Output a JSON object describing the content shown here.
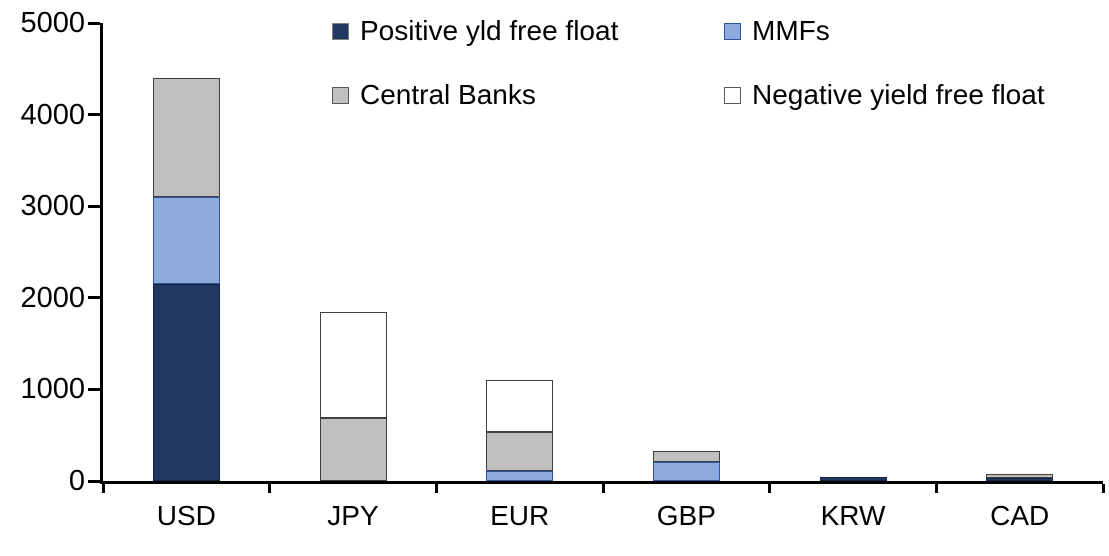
{
  "chart_data": {
    "type": "bar",
    "stacked": true,
    "title": "",
    "xlabel": "",
    "ylabel": "",
    "categories": [
      "USD",
      "JPY",
      "EUR",
      "GBP",
      "KRW",
      "CAD"
    ],
    "series": [
      {
        "name": "Positive yld free float",
        "color": "#203864",
        "border_color": "#16253f",
        "marker_border": "#808080",
        "values": [
          2150,
          0,
          0,
          0,
          45,
          35
        ]
      },
      {
        "name": "MMFs",
        "color": "#8FAADC",
        "border_color": "#2E5597",
        "marker_border": "#2E5597",
        "values": [
          950,
          0,
          110,
          210,
          0,
          0
        ]
      },
      {
        "name": "Central Banks",
        "color": "#BFBFBF",
        "border_color": "#404040",
        "marker_border": "#595959",
        "values": [
          1300,
          690,
          420,
          120,
          0,
          40
        ]
      },
      {
        "name": "Negative yield free float",
        "color": "#FFFFFF",
        "border_color": "#404040",
        "marker_border": "#595959",
        "values": [
          0,
          1150,
          570,
          0,
          0,
          0
        ]
      }
    ],
    "ylim": [
      0,
      5000
    ],
    "yticks": [
      "0",
      "1000",
      "2000",
      "3000",
      "4000",
      "5000"
    ],
    "grid": false,
    "legend_position": "top",
    "axis_color": "#000000"
  }
}
